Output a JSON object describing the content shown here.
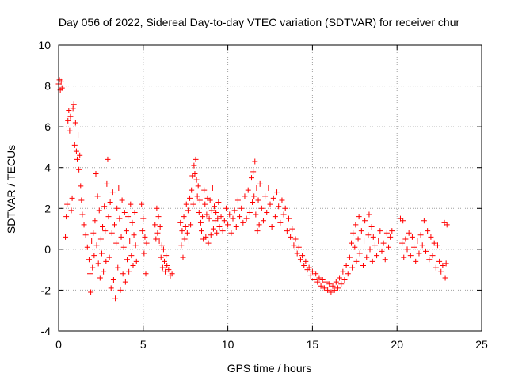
{
  "chart_data": {
    "type": "scatter",
    "title": "Day 056 of 2022, Sidereal Day-to-day VTEC variation (SDTVAR) for receiver chur",
    "xlabel": "GPS time / hours",
    "ylabel": "SDTVAR / TECUs",
    "xlim": [
      0,
      25
    ],
    "ylim": [
      -4,
      10
    ],
    "x_ticks": [
      0,
      5,
      10,
      15,
      20,
      25
    ],
    "x_tick_labels": [
      "0",
      "5",
      "10",
      "15",
      "20",
      "25"
    ],
    "y_ticks": [
      -4,
      -2,
      0,
      2,
      4,
      6,
      8,
      10
    ],
    "y_tick_labels": [
      "-4",
      "-2",
      "0",
      "2",
      "4",
      "6",
      "8",
      "10"
    ],
    "grid": true,
    "marker": "+",
    "series_color": "#ff0000",
    "series": [
      {
        "name": "SDTVAR",
        "points": [
          [
            0.0,
            8.1
          ],
          [
            0.05,
            8.3
          ],
          [
            0.1,
            7.8
          ],
          [
            0.15,
            8.2
          ],
          [
            0.2,
            7.9
          ],
          [
            0.4,
            0.6
          ],
          [
            0.45,
            1.6
          ],
          [
            0.5,
            2.2
          ],
          [
            0.55,
            6.3
          ],
          [
            0.6,
            6.8
          ],
          [
            0.65,
            5.8
          ],
          [
            0.7,
            6.5
          ],
          [
            0.75,
            1.9
          ],
          [
            0.8,
            2.5
          ],
          [
            0.85,
            6.9
          ],
          [
            0.9,
            7.1
          ],
          [
            0.95,
            5.1
          ],
          [
            1.0,
            6.2
          ],
          [
            1.05,
            4.8
          ],
          [
            1.1,
            4.4
          ],
          [
            1.15,
            5.6
          ],
          [
            1.2,
            3.9
          ],
          [
            1.25,
            4.6
          ],
          [
            1.3,
            3.1
          ],
          [
            1.35,
            2.4
          ],
          [
            1.4,
            1.7
          ],
          [
            1.5,
            1.2
          ],
          [
            1.6,
            0.7
          ],
          [
            1.7,
            0.1
          ],
          [
            1.8,
            -0.5
          ],
          [
            1.85,
            -1.2
          ],
          [
            1.9,
            -2.1
          ],
          [
            1.95,
            0.4
          ],
          [
            2.0,
            -0.9
          ],
          [
            2.05,
            0.8
          ],
          [
            2.1,
            -0.3
          ],
          [
            2.15,
            1.4
          ],
          [
            2.2,
            3.7
          ],
          [
            2.25,
            0.2
          ],
          [
            2.3,
            2.6
          ],
          [
            2.35,
            -0.7
          ],
          [
            2.4,
            1.9
          ],
          [
            2.45,
            -1.4
          ],
          [
            2.5,
            0.5
          ],
          [
            2.55,
            -0.2
          ],
          [
            2.6,
            1.1
          ],
          [
            2.65,
            -1.1
          ],
          [
            2.7,
            2.1
          ],
          [
            2.75,
            0.9
          ],
          [
            2.8,
            -0.6
          ],
          [
            2.85,
            3.2
          ],
          [
            2.9,
            4.4
          ],
          [
            2.95,
            1.6
          ],
          [
            3.0,
            -0.4
          ],
          [
            3.05,
            2.3
          ],
          [
            3.1,
            -1.9
          ],
          [
            3.15,
            0.8
          ],
          [
            3.2,
            2.8
          ],
          [
            3.25,
            -1.5
          ],
          [
            3.3,
            1.2
          ],
          [
            3.35,
            -2.4
          ],
          [
            3.4,
            0.3
          ],
          [
            3.45,
            2.0
          ],
          [
            3.5,
            -0.9
          ],
          [
            3.55,
            3.0
          ],
          [
            3.6,
            1.5
          ],
          [
            3.65,
            -2.0
          ],
          [
            3.7,
            0.6
          ],
          [
            3.75,
            2.4
          ],
          [
            3.8,
            -1.2
          ],
          [
            3.85,
            0.1
          ],
          [
            3.9,
            1.8
          ],
          [
            3.95,
            -1.6
          ],
          [
            4.0,
            0.9
          ],
          [
            4.05,
            -0.5
          ],
          [
            4.1,
            1.6
          ],
          [
            4.15,
            -1.1
          ],
          [
            4.2,
            0.4
          ],
          [
            4.25,
            2.2
          ],
          [
            4.3,
            -0.3
          ],
          [
            4.35,
            1.3
          ],
          [
            4.4,
            -0.8
          ],
          [
            4.45,
            0.7
          ],
          [
            4.5,
            1.8
          ],
          [
            4.55,
            0.2
          ],
          [
            4.6,
            -0.6
          ],
          [
            4.9,
            2.2
          ],
          [
            4.95,
            0.9
          ],
          [
            5.0,
            1.5
          ],
          [
            5.05,
            -0.2
          ],
          [
            5.1,
            0.6
          ],
          [
            5.15,
            -1.2
          ],
          [
            5.2,
            0.3
          ],
          [
            5.7,
            1.2
          ],
          [
            5.75,
            0.5
          ],
          [
            5.8,
            2.0
          ],
          [
            5.85,
            0.8
          ],
          [
            5.9,
            1.6
          ],
          [
            5.95,
            0.4
          ],
          [
            6.0,
            1.1
          ],
          [
            6.05,
            -0.4
          ],
          [
            6.1,
            0.2
          ],
          [
            6.15,
            -0.9
          ],
          [
            6.2,
            0.0
          ],
          [
            6.25,
            -0.6
          ],
          [
            6.3,
            -1.1
          ],
          [
            6.35,
            -0.3
          ],
          [
            6.4,
            -0.8
          ],
          [
            6.5,
            -1.0
          ],
          [
            6.6,
            -1.3
          ],
          [
            6.7,
            -1.2
          ],
          [
            7.2,
            1.3
          ],
          [
            7.25,
            0.2
          ],
          [
            7.3,
            0.9
          ],
          [
            7.35,
            -0.4
          ],
          [
            7.4,
            1.6
          ],
          [
            7.45,
            0.5
          ],
          [
            7.5,
            1.1
          ],
          [
            7.55,
            2.2
          ],
          [
            7.6,
            0.8
          ],
          [
            7.65,
            1.9
          ],
          [
            7.7,
            0.4
          ],
          [
            7.75,
            2.5
          ],
          [
            7.8,
            1.2
          ],
          [
            7.85,
            2.9
          ],
          [
            7.9,
            3.6
          ],
          [
            7.95,
            2.2
          ],
          [
            8.0,
            4.1
          ],
          [
            8.05,
            3.7
          ],
          [
            8.1,
            4.4
          ],
          [
            8.15,
            3.4
          ],
          [
            8.2,
            2.6
          ],
          [
            8.25,
            3.1
          ],
          [
            8.3,
            1.8
          ],
          [
            8.35,
            2.4
          ],
          [
            8.4,
            1.3
          ],
          [
            8.45,
            0.9
          ],
          [
            8.5,
            1.6
          ],
          [
            8.55,
            0.5
          ],
          [
            8.6,
            2.9
          ],
          [
            8.65,
            2.2
          ],
          [
            8.7,
            0.6
          ],
          [
            8.75,
            1.7
          ],
          [
            8.8,
            2.5
          ],
          [
            8.85,
            0.3
          ],
          [
            8.9,
            1.5
          ],
          [
            8.95,
            2.4
          ],
          [
            9.0,
            0.7
          ],
          [
            9.05,
            1.9
          ],
          [
            9.1,
            3.0
          ],
          [
            9.15,
            1.0
          ],
          [
            9.2,
            2.1
          ],
          [
            9.25,
            1.4
          ],
          [
            9.3,
            1.8
          ],
          [
            9.35,
            0.8
          ],
          [
            9.4,
            1.5
          ],
          [
            9.45,
            2.3
          ],
          [
            9.5,
            1.1
          ],
          [
            9.6,
            1.6
          ],
          [
            9.7,
            0.9
          ],
          [
            9.8,
            1.4
          ],
          [
            9.9,
            2.0
          ],
          [
            10.0,
            1.2
          ],
          [
            10.1,
            1.7
          ],
          [
            10.2,
            0.8
          ],
          [
            10.3,
            1.5
          ],
          [
            10.4,
            1.9
          ],
          [
            10.5,
            1.1
          ],
          [
            10.6,
            2.4
          ],
          [
            10.7,
            1.6
          ],
          [
            10.8,
            2.0
          ],
          [
            10.9,
            1.3
          ],
          [
            11.0,
            2.6
          ],
          [
            11.1,
            1.5
          ],
          [
            11.2,
            2.9
          ],
          [
            11.3,
            1.8
          ],
          [
            11.4,
            3.5
          ],
          [
            11.45,
            2.3
          ],
          [
            11.5,
            3.8
          ],
          [
            11.55,
            2.6
          ],
          [
            11.6,
            4.3
          ],
          [
            11.65,
            1.7
          ],
          [
            11.7,
            3.0
          ],
          [
            11.75,
            0.9
          ],
          [
            11.8,
            2.4
          ],
          [
            11.85,
            1.2
          ],
          [
            11.9,
            3.2
          ],
          [
            12.0,
            2.0
          ],
          [
            12.1,
            1.4
          ],
          [
            12.2,
            2.6
          ],
          [
            12.3,
            1.8
          ],
          [
            12.4,
            3.0
          ],
          [
            12.5,
            2.2
          ],
          [
            12.6,
            1.1
          ],
          [
            12.7,
            2.5
          ],
          [
            12.8,
            1.6
          ],
          [
            12.9,
            2.8
          ],
          [
            13.0,
            2.1
          ],
          [
            13.1,
            1.3
          ],
          [
            13.2,
            2.4
          ],
          [
            13.3,
            1.7
          ],
          [
            13.4,
            2.0
          ],
          [
            13.5,
            0.9
          ],
          [
            13.6,
            1.5
          ],
          [
            13.7,
            0.6
          ],
          [
            13.8,
            1.0
          ],
          [
            13.9,
            0.2
          ],
          [
            14.0,
            0.5
          ],
          [
            14.1,
            -0.2
          ],
          [
            14.2,
            0.1
          ],
          [
            14.3,
            -0.5
          ],
          [
            14.4,
            -0.3
          ],
          [
            14.5,
            -0.8
          ],
          [
            14.6,
            -0.6
          ],
          [
            14.7,
            -1.0
          ],
          [
            14.8,
            -0.9
          ],
          [
            14.9,
            -1.3
          ],
          [
            15.0,
            -1.1
          ],
          [
            15.1,
            -1.5
          ],
          [
            15.2,
            -1.2
          ],
          [
            15.3,
            -1.6
          ],
          [
            15.4,
            -1.4
          ],
          [
            15.5,
            -1.8
          ],
          [
            15.6,
            -1.5
          ],
          [
            15.7,
            -1.9
          ],
          [
            15.8,
            -1.6
          ],
          [
            15.9,
            -2.0
          ],
          [
            16.0,
            -1.7
          ],
          [
            16.1,
            -2.1
          ],
          [
            16.2,
            -1.8
          ],
          [
            16.3,
            -2.0
          ],
          [
            16.4,
            -1.6
          ],
          [
            16.5,
            -1.9
          ],
          [
            16.6,
            -1.4
          ],
          [
            16.7,
            -1.7
          ],
          [
            16.8,
            -1.1
          ],
          [
            16.9,
            -1.5
          ],
          [
            17.0,
            -0.8
          ],
          [
            17.1,
            -1.2
          ],
          [
            17.2,
            -0.4
          ],
          [
            17.3,
            0.3
          ],
          [
            17.35,
            -0.9
          ],
          [
            17.4,
            0.8
          ],
          [
            17.5,
            0.1
          ],
          [
            17.55,
            1.2
          ],
          [
            17.6,
            -0.6
          ],
          [
            17.7,
            0.5
          ],
          [
            17.75,
            1.6
          ],
          [
            17.8,
            -0.2
          ],
          [
            17.9,
            0.9
          ],
          [
            18.0,
            -0.8
          ],
          [
            18.05,
            0.4
          ],
          [
            18.1,
            1.4
          ],
          [
            18.2,
            -0.4
          ],
          [
            18.3,
            0.7
          ],
          [
            18.35,
            1.7
          ],
          [
            18.4,
            0.0
          ],
          [
            18.5,
            1.1
          ],
          [
            18.55,
            -0.6
          ],
          [
            18.6,
            0.6
          ],
          [
            18.7,
            0.2
          ],
          [
            18.8,
            -0.3
          ],
          [
            18.9,
            0.4
          ],
          [
            19.0,
            0.9
          ],
          [
            19.1,
            -0.1
          ],
          [
            19.2,
            0.3
          ],
          [
            19.3,
            -0.5
          ],
          [
            19.4,
            0.8
          ],
          [
            19.5,
            0.1
          ],
          [
            19.6,
            0.6
          ],
          [
            19.7,
            0.9
          ],
          [
            20.2,
            1.5
          ],
          [
            20.3,
            0.3
          ],
          [
            20.35,
            1.4
          ],
          [
            20.4,
            -0.4
          ],
          [
            20.5,
            0.5
          ],
          [
            20.6,
            0.0
          ],
          [
            20.7,
            0.8
          ],
          [
            20.8,
            -0.3
          ],
          [
            20.9,
            0.6
          ],
          [
            21.0,
            0.1
          ],
          [
            21.1,
            -0.6
          ],
          [
            21.2,
            0.4
          ],
          [
            21.3,
            -0.2
          ],
          [
            21.4,
            0.7
          ],
          [
            21.5,
            0.2
          ],
          [
            21.6,
            1.4
          ],
          [
            21.7,
            -0.1
          ],
          [
            21.8,
            0.9
          ],
          [
            21.9,
            -0.5
          ],
          [
            22.0,
            0.6
          ],
          [
            22.1,
            -0.3
          ],
          [
            22.2,
            0.3
          ],
          [
            22.3,
            -0.9
          ],
          [
            22.4,
            0.2
          ],
          [
            22.5,
            -0.6
          ],
          [
            22.6,
            -1.1
          ],
          [
            22.7,
            -0.8
          ],
          [
            22.8,
            1.3
          ],
          [
            22.85,
            -1.4
          ],
          [
            22.9,
            -0.7
          ],
          [
            22.95,
            1.2
          ]
        ]
      }
    ]
  }
}
